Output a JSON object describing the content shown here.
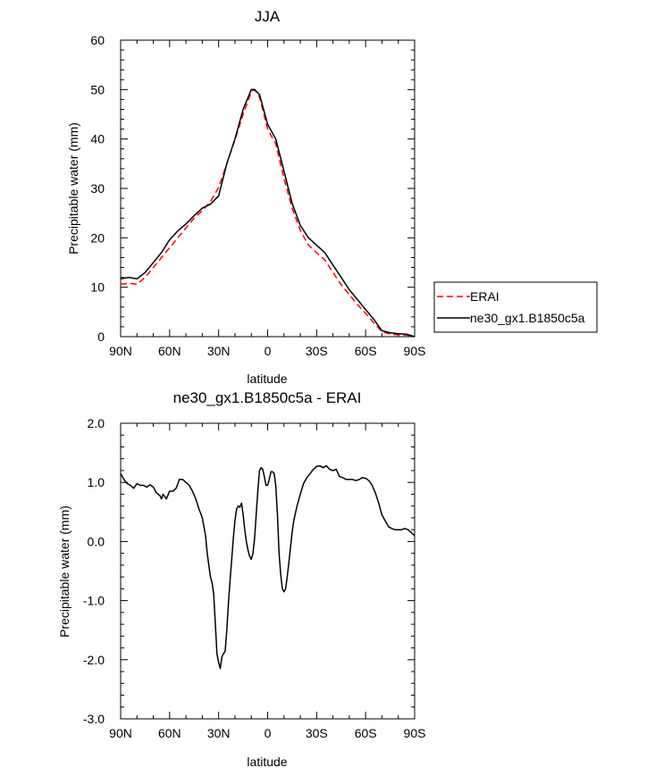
{
  "chart_data": [
    {
      "type": "line",
      "title": "JJA",
      "xlabel": "latitude",
      "ylabel": "Precipitable water (mm)",
      "xlim": [
        90,
        -90
      ],
      "ylim": [
        0,
        60
      ],
      "x_ticks": [
        90,
        60,
        30,
        0,
        -30,
        -60,
        -90
      ],
      "x_tick_labels": [
        "90N",
        "60N",
        "30N",
        "0",
        "30S",
        "60S",
        "90S"
      ],
      "y_ticks": [
        0,
        10,
        20,
        30,
        40,
        50,
        60
      ],
      "y_tick_labels": [
        "0",
        "10",
        "20",
        "30",
        "40",
        "50",
        "60"
      ],
      "legend": {
        "placement": "outside-right"
      },
      "series": [
        {
          "name": "ERAI",
          "color": "#ff0000",
          "dash": true,
          "x": [
            90,
            85,
            80,
            75,
            70,
            65,
            60,
            55,
            50,
            45,
            40,
            35,
            30,
            25,
            20,
            15,
            10,
            8,
            5,
            0,
            -5,
            -10,
            -15,
            -20,
            -25,
            -30,
            -35,
            -40,
            -45,
            -50,
            -55,
            -60,
            -65,
            -70,
            -75,
            -80,
            -85,
            -90
          ],
          "values": [
            10.6,
            10.8,
            10.6,
            12,
            14,
            16,
            18,
            20,
            22,
            24,
            25.5,
            27.3,
            30.2,
            35,
            39.8,
            45,
            49.5,
            50,
            48.5,
            42,
            39,
            32,
            26,
            21.5,
            18.5,
            17,
            15.5,
            13,
            10.5,
            8.5,
            6.5,
            4.7,
            2.8,
            1,
            0.5,
            0.4,
            0.3,
            0
          ]
        },
        {
          "name": "ne30_gx1.B1850c5a",
          "color": "#000000",
          "dash": false,
          "x": [
            90,
            85,
            80,
            75,
            70,
            65,
            60,
            55,
            50,
            45,
            40,
            35,
            30,
            25,
            20,
            15,
            10,
            8,
            5,
            0,
            -5,
            -10,
            -15,
            -20,
            -25,
            -30,
            -35,
            -40,
            -45,
            -50,
            -55,
            -60,
            -65,
            -70,
            -75,
            -80,
            -85,
            -90
          ],
          "values": [
            11.7,
            12,
            11.7,
            13,
            15,
            17,
            19.6,
            21.4,
            22.8,
            24.5,
            26,
            26.8,
            28.5,
            35,
            40,
            46,
            50,
            50,
            49,
            43,
            40,
            33.5,
            27,
            22.5,
            20,
            18.5,
            17,
            14.5,
            12,
            9.5,
            7.5,
            5.5,
            3.5,
            1.2,
            0.8,
            0.6,
            0.5,
            0
          ]
        }
      ]
    },
    {
      "type": "line",
      "title": "ne30_gx1.B1850c5a - ERAI",
      "xlabel": "latitude",
      "ylabel": "Precipitable water (mm)",
      "xlim": [
        90,
        -90
      ],
      "ylim": [
        -3,
        2
      ],
      "x_ticks": [
        90,
        60,
        30,
        0,
        -30,
        -60,
        -90
      ],
      "x_tick_labels": [
        "90N",
        "60N",
        "30N",
        "0",
        "30S",
        "60S",
        "90S"
      ],
      "y_ticks": [
        2,
        1,
        0,
        -1,
        -2,
        -3
      ],
      "y_tick_labels": [
        "2.0",
        "1.0",
        "0.0",
        "-1.0",
        "-2.0",
        "-3.0"
      ],
      "series": [
        {
          "color": "#000000",
          "x": [
            90,
            88,
            86,
            84,
            82,
            80,
            78,
            76,
            74,
            72,
            70,
            68,
            66,
            65,
            64,
            62,
            60,
            58,
            56,
            54,
            52,
            50,
            48,
            46,
            44,
            42,
            40,
            38,
            37,
            36,
            35,
            34,
            33,
            32,
            31,
            30,
            29,
            28,
            27,
            26,
            25,
            24,
            23,
            22,
            21,
            20,
            19,
            18,
            17,
            16,
            15,
            14,
            13,
            12,
            11,
            10,
            9,
            8,
            7,
            6,
            5,
            4,
            3,
            2,
            1,
            0,
            -1,
            -2,
            -3,
            -4,
            -5,
            -6,
            -7,
            -8,
            -9,
            -10,
            -11,
            -12,
            -13,
            -14,
            -15,
            -16,
            -18,
            -20,
            -22,
            -24,
            -26,
            -28,
            -30,
            -32,
            -34,
            -36,
            -38,
            -40,
            -42,
            -44,
            -46,
            -48,
            -50,
            -52,
            -54,
            -56,
            -58,
            -60,
            -62,
            -64,
            -66,
            -68,
            -70,
            -72,
            -74,
            -76,
            -78,
            -80,
            -82,
            -84,
            -86,
            -88,
            -90
          ],
          "values": [
            1.15,
            1.05,
            0.98,
            0.95,
            0.9,
            0.98,
            0.95,
            0.95,
            0.92,
            0.96,
            0.92,
            0.82,
            0.78,
            0.72,
            0.8,
            0.72,
            0.85,
            0.85,
            0.9,
            1.05,
            1.05,
            1.0,
            0.95,
            0.85,
            0.72,
            0.55,
            0.4,
            0.1,
            -0.2,
            -0.4,
            -0.6,
            -0.7,
            -0.9,
            -1.4,
            -1.9,
            -2.05,
            -2.15,
            -1.95,
            -1.9,
            -1.85,
            -1.5,
            -1.05,
            -0.65,
            -0.3,
            0.05,
            0.35,
            0.55,
            0.6,
            0.58,
            0.65,
            0.45,
            0.2,
            0.0,
            -0.15,
            -0.25,
            -0.3,
            -0.2,
            0.05,
            0.45,
            0.85,
            1.2,
            1.25,
            1.22,
            1.1,
            0.95,
            0.95,
            1.05,
            1.18,
            1.18,
            1.15,
            0.95,
            0.45,
            -0.2,
            -0.55,
            -0.8,
            -0.85,
            -0.8,
            -0.6,
            -0.35,
            -0.1,
            0.15,
            0.35,
            0.6,
            0.8,
            0.98,
            1.08,
            1.15,
            1.22,
            1.27,
            1.28,
            1.25,
            1.28,
            1.22,
            1.2,
            1.22,
            1.1,
            1.08,
            1.05,
            1.05,
            1.05,
            1.03,
            1.05,
            1.08,
            1.07,
            1.03,
            0.95,
            0.82,
            0.65,
            0.45,
            0.35,
            0.25,
            0.22,
            0.2,
            0.2,
            0.2,
            0.22,
            0.2,
            0.15,
            0.1
          ]
        }
      ]
    }
  ]
}
